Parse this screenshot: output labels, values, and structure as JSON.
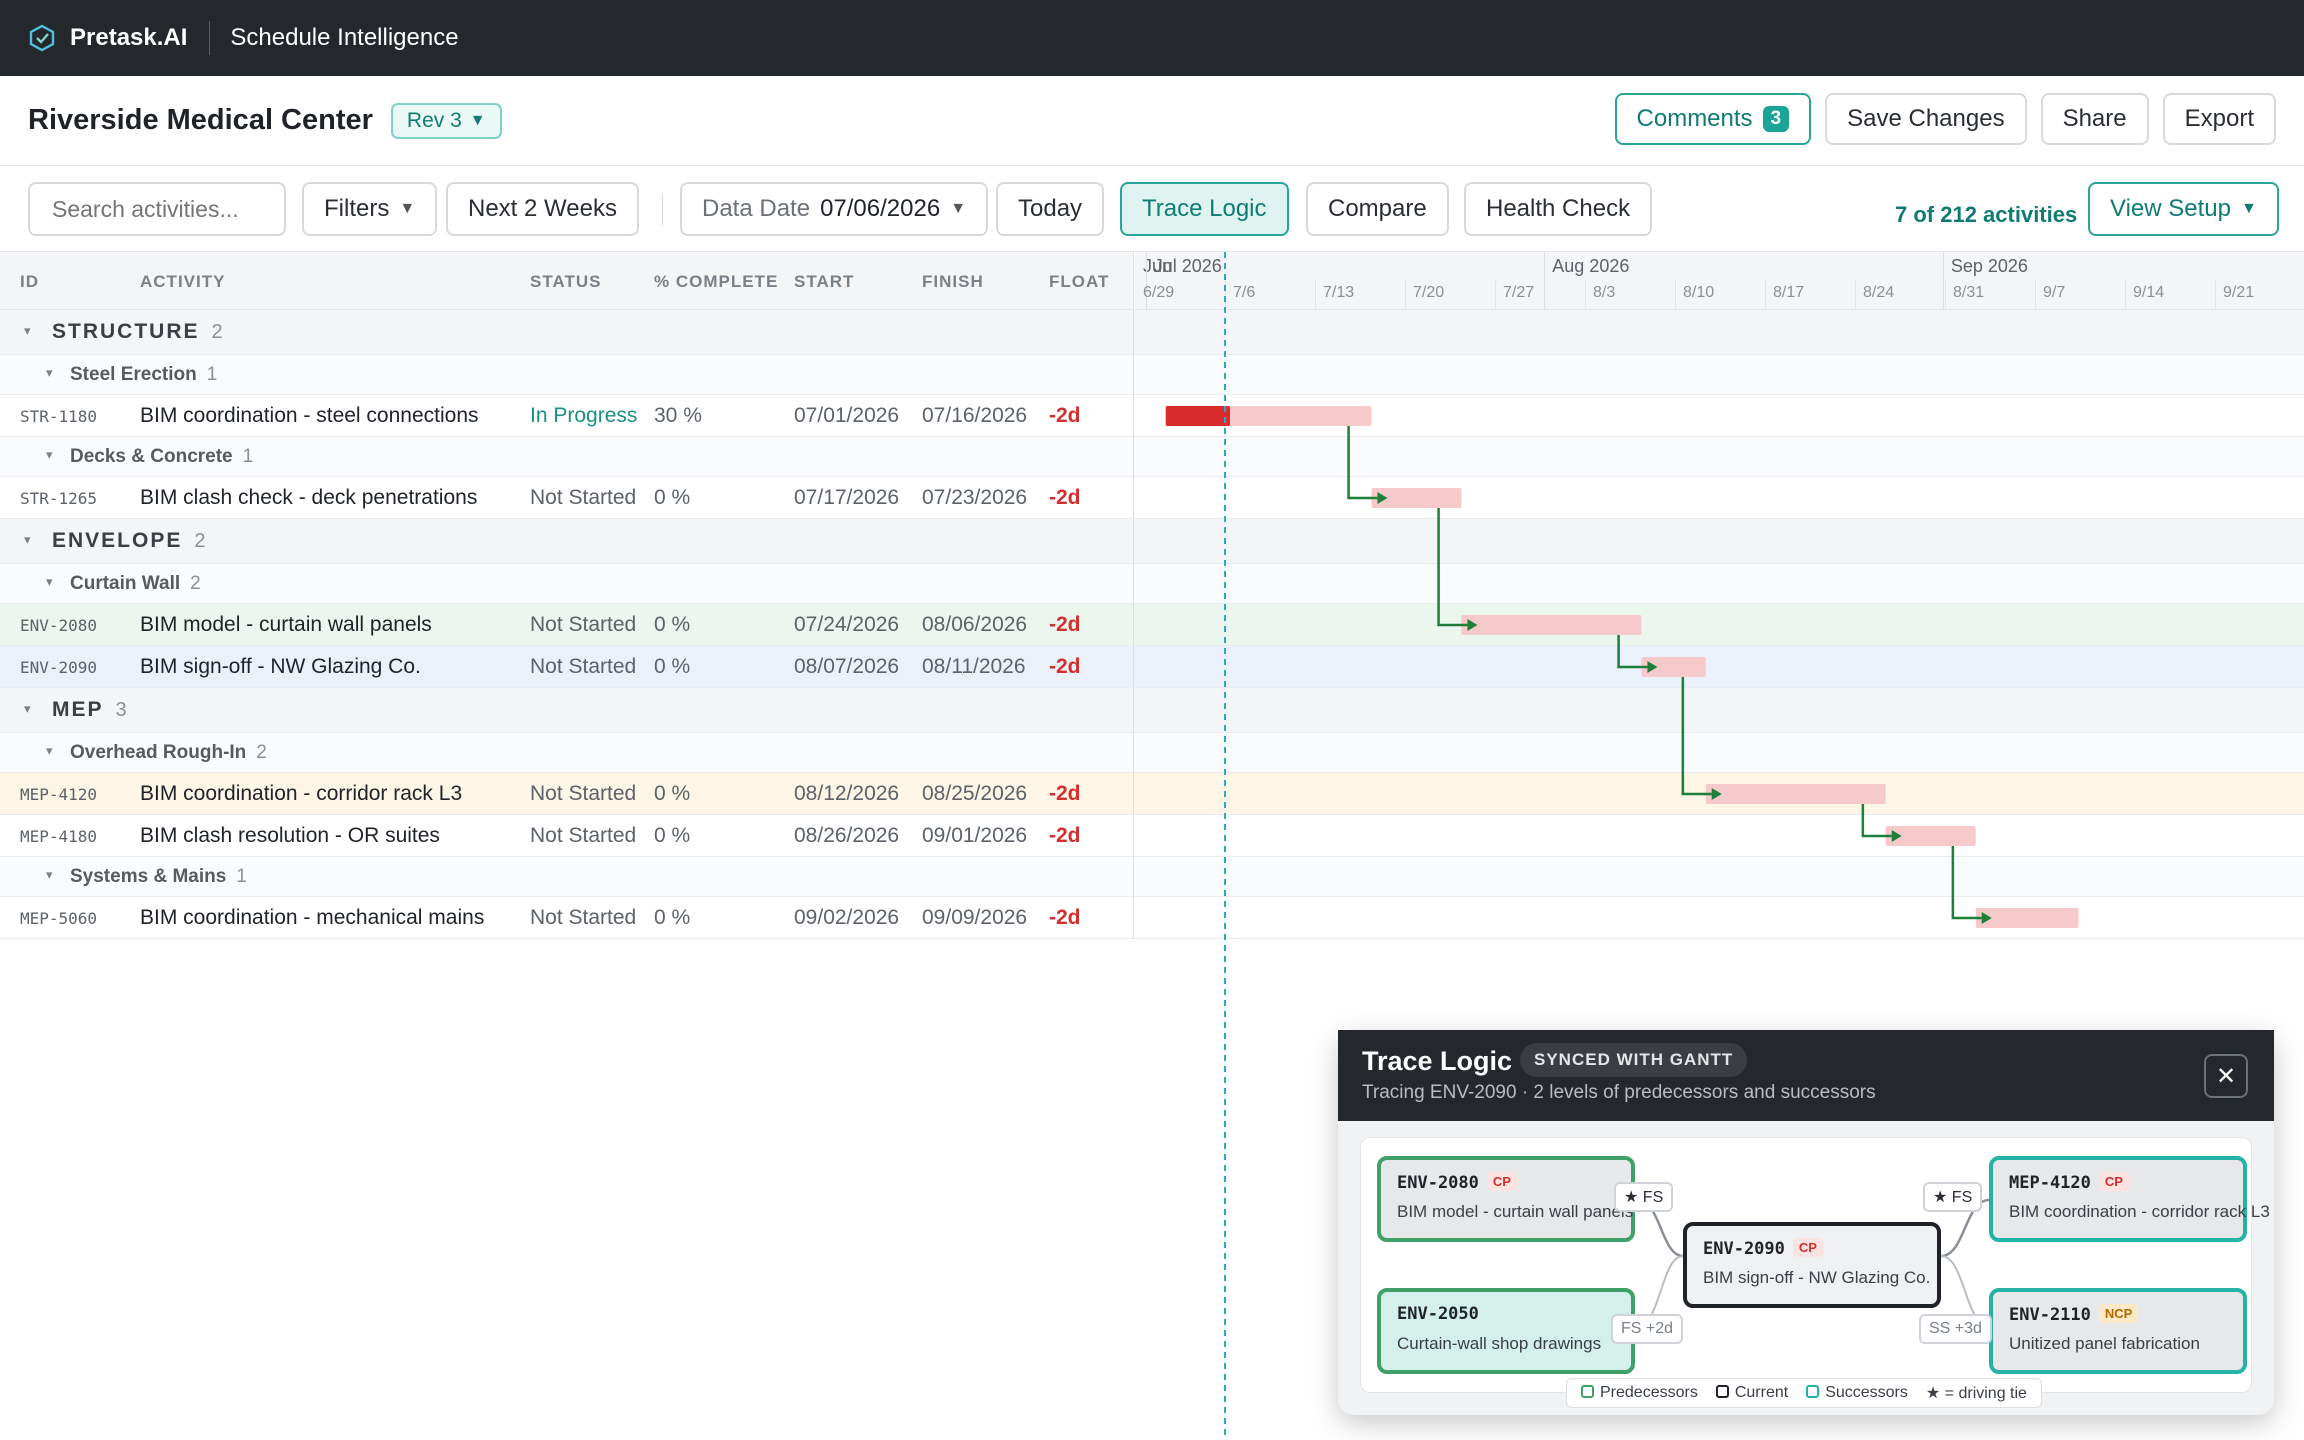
{
  "app": {
    "brand": "Pretask.AI",
    "product": "Schedule Intelligence"
  },
  "project": {
    "title": "Riverside Medical Center",
    "revision": "Rev 3"
  },
  "header_actions": {
    "comments": "Comments",
    "comments_count": "3",
    "save": "Save Changes",
    "share": "Share",
    "export": "Export"
  },
  "toolbar": {
    "search_placeholder": "Search activities...",
    "filters": "Filters",
    "range": "Next 2 Weeks",
    "data_date_label": "Data Date",
    "data_date": "07/06/2026",
    "today": "Today",
    "trace_logic": "Trace Logic",
    "compare": "Compare",
    "health_check": "Health Check",
    "activity_count": "7 of 212 activities",
    "view_setup": "View Setup"
  },
  "columns": {
    "id": "ID",
    "activity": "ACTIVITY",
    "status": "STATUS",
    "complete": "% COMPLETE",
    "start": "START",
    "finish": "FINISH",
    "float": "FLOAT"
  },
  "timeline": {
    "months": [
      "Jun",
      "Jul 2026",
      "Aug 2026",
      "Sep 2026"
    ],
    "weeks": [
      "6/29",
      "7/6",
      "7/13",
      "7/20",
      "7/27",
      "8/3",
      "8/10",
      "8/17",
      "8/24",
      "8/31",
      "9/7",
      "9/14",
      "9/21"
    ],
    "data_date": "2026-07-06"
  },
  "rows": [
    {
      "kind": "group",
      "name": "STRUCTURE",
      "count": "2"
    },
    {
      "kind": "sub",
      "name": "Steel Erection",
      "count": "1"
    },
    {
      "kind": "act",
      "id": "STR-1180",
      "name": "BIM coordination - steel connections",
      "status": "In Progress",
      "pct": "30 %",
      "start": "07/01/2026",
      "finish": "07/16/2026",
      "float": "-2d",
      "progress": 0.3,
      "highlight": ""
    },
    {
      "kind": "sub",
      "name": "Decks & Concrete",
      "count": "1"
    },
    {
      "kind": "act",
      "id": "STR-1265",
      "name": "BIM clash check - deck penetrations",
      "status": "Not Started",
      "pct": "0 %",
      "start": "07/17/2026",
      "finish": "07/23/2026",
      "float": "-2d",
      "progress": 0,
      "highlight": ""
    },
    {
      "kind": "group",
      "name": "ENVELOPE",
      "count": "2"
    },
    {
      "kind": "sub",
      "name": "Curtain Wall",
      "count": "2"
    },
    {
      "kind": "act",
      "id": "ENV-2080",
      "name": "BIM model - curtain wall panels",
      "status": "Not Started",
      "pct": "0 %",
      "start": "07/24/2026",
      "finish": "08/06/2026",
      "float": "-2d",
      "progress": 0,
      "highlight": "green"
    },
    {
      "kind": "act",
      "id": "ENV-2090",
      "name": "BIM sign-off - NW Glazing Co.",
      "status": "Not Started",
      "pct": "0 %",
      "start": "08/07/2026",
      "finish": "08/11/2026",
      "float": "-2d",
      "progress": 0,
      "highlight": "blue"
    },
    {
      "kind": "group",
      "name": "MEP",
      "count": "3"
    },
    {
      "kind": "sub",
      "name": "Overhead Rough-In",
      "count": "2"
    },
    {
      "kind": "act",
      "id": "MEP-4120",
      "name": "BIM coordination - corridor rack L3",
      "status": "Not Started",
      "pct": "0 %",
      "start": "08/12/2026",
      "finish": "08/25/2026",
      "float": "-2d",
      "progress": 0,
      "highlight": "amber"
    },
    {
      "kind": "act",
      "id": "MEP-4180",
      "name": "BIM clash resolution - OR suites",
      "status": "Not Started",
      "pct": "0 %",
      "start": "08/26/2026",
      "finish": "09/01/2026",
      "float": "-2d",
      "progress": 0,
      "highlight": ""
    },
    {
      "kind": "sub",
      "name": "Systems & Mains",
      "count": "1"
    },
    {
      "kind": "act",
      "id": "MEP-5060",
      "name": "BIM coordination - mechanical mains",
      "status": "Not Started",
      "pct": "0 %",
      "start": "09/02/2026",
      "finish": "09/09/2026",
      "float": "-2d",
      "progress": 0,
      "highlight": ""
    }
  ],
  "colors": {
    "accent": "#1aa597",
    "critical": "#d32f2f",
    "bar": "#f6c9cb",
    "bar_progress": "#d92b2b",
    "link": "#1e7f3a",
    "data_date_line": "#2aa8c4"
  },
  "trace": {
    "title": "Trace Logic",
    "badge": "SYNCED WITH GANTT",
    "subtitle": "Tracing ENV-2090 · 2 levels of predecessors and successors",
    "close_icon": "close-icon",
    "nodes": {
      "pred1": {
        "id": "ENV-2080",
        "tag": "CP",
        "desc": "BIM model - curtain wall panels"
      },
      "pred2": {
        "id": "ENV-2050",
        "tag": "",
        "desc": "Curtain-wall shop drawings"
      },
      "current": {
        "id": "ENV-2090",
        "tag": "CP",
        "desc": "BIM sign-off - NW Glazing Co."
      },
      "succ1": {
        "id": "MEP-4120",
        "tag": "CP",
        "desc": "BIM coordination - corridor rack L3"
      },
      "succ2": {
        "id": "ENV-2110",
        "tag": "NCP",
        "desc": "Unitized panel fabrication"
      }
    },
    "rels": {
      "pred1": "★ FS",
      "pred2": "FS +2d",
      "succ1": "★ FS",
      "succ2": "SS +3d"
    },
    "legend": {
      "pred": "Predecessors",
      "cur": "Current",
      "succ": "Successors",
      "tie": "★ = driving tie"
    }
  }
}
